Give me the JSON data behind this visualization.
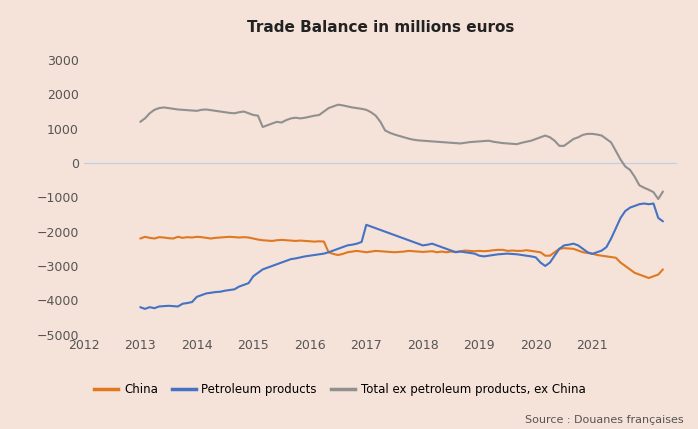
{
  "title": "Trade Balance in millions euros",
  "background_color": "#f5e2d8",
  "source_text": "Source : Douanes françaises",
  "xlim": [
    2012.0,
    2022.5
  ],
  "ylim": [
    -5000,
    3500
  ],
  "yticks": [
    -5000,
    -4000,
    -3000,
    -2000,
    -1000,
    0,
    1000,
    2000,
    3000
  ],
  "xticks": [
    2012,
    2013,
    2014,
    2015,
    2016,
    2017,
    2018,
    2019,
    2020,
    2021
  ],
  "china_color": "#E07820",
  "petroleum_color": "#4472C4",
  "total_color": "#909090",
  "china_label": "China",
  "petroleum_label": "Petroleum products",
  "total_label": "Total ex petroleum products, ex China",
  "china": {
    "x": [
      2013.0,
      2013.083,
      2013.167,
      2013.25,
      2013.333,
      2013.417,
      2013.5,
      2013.583,
      2013.667,
      2013.75,
      2013.833,
      2013.917,
      2014.0,
      2014.083,
      2014.167,
      2014.25,
      2014.333,
      2014.417,
      2014.5,
      2014.583,
      2014.667,
      2014.75,
      2014.833,
      2014.917,
      2015.0,
      2015.083,
      2015.167,
      2015.25,
      2015.333,
      2015.417,
      2015.5,
      2015.583,
      2015.667,
      2015.75,
      2015.833,
      2015.917,
      2016.0,
      2016.083,
      2016.167,
      2016.25,
      2016.333,
      2016.417,
      2016.5,
      2016.583,
      2016.667,
      2016.75,
      2016.833,
      2016.917,
      2017.0,
      2017.083,
      2017.167,
      2017.25,
      2017.333,
      2017.417,
      2017.5,
      2017.583,
      2017.667,
      2017.75,
      2017.833,
      2017.917,
      2018.0,
      2018.083,
      2018.167,
      2018.25,
      2018.333,
      2018.417,
      2018.5,
      2018.583,
      2018.667,
      2018.75,
      2018.833,
      2018.917,
      2019.0,
      2019.083,
      2019.167,
      2019.25,
      2019.333,
      2019.417,
      2019.5,
      2019.583,
      2019.667,
      2019.75,
      2019.833,
      2019.917,
      2020.0,
      2020.083,
      2020.167,
      2020.25,
      2020.333,
      2020.417,
      2020.5,
      2020.583,
      2020.667,
      2020.75,
      2020.833,
      2020.917,
      2021.0,
      2021.083,
      2021.167,
      2021.25,
      2021.333,
      2021.417,
      2021.5,
      2021.583,
      2021.667,
      2021.75,
      2021.833,
      2021.917,
      2022.0,
      2022.083,
      2022.167,
      2022.25
    ],
    "y": [
      -2200,
      -2150,
      -2180,
      -2200,
      -2160,
      -2170,
      -2190,
      -2200,
      -2150,
      -2180,
      -2160,
      -2170,
      -2150,
      -2160,
      -2180,
      -2200,
      -2180,
      -2170,
      -2160,
      -2150,
      -2160,
      -2170,
      -2160,
      -2170,
      -2200,
      -2230,
      -2250,
      -2260,
      -2270,
      -2250,
      -2240,
      -2250,
      -2260,
      -2270,
      -2260,
      -2270,
      -2280,
      -2290,
      -2280,
      -2290,
      -2600,
      -2650,
      -2680,
      -2650,
      -2600,
      -2580,
      -2560,
      -2580,
      -2600,
      -2580,
      -2560,
      -2570,
      -2580,
      -2590,
      -2600,
      -2590,
      -2580,
      -2560,
      -2570,
      -2580,
      -2590,
      -2580,
      -2570,
      -2600,
      -2580,
      -2600,
      -2580,
      -2590,
      -2570,
      -2550,
      -2560,
      -2570,
      -2560,
      -2570,
      -2560,
      -2540,
      -2530,
      -2530,
      -2560,
      -2550,
      -2560,
      -2560,
      -2540,
      -2560,
      -2580,
      -2600,
      -2700,
      -2700,
      -2600,
      -2500,
      -2480,
      -2490,
      -2500,
      -2550,
      -2600,
      -2620,
      -2640,
      -2680,
      -2700,
      -2720,
      -2740,
      -2760,
      -2900,
      -3000,
      -3100,
      -3200,
      -3250,
      -3300,
      -3350,
      -3300,
      -3250,
      -3100
    ]
  },
  "petroleum": {
    "x": [
      2013.0,
      2013.083,
      2013.167,
      2013.25,
      2013.333,
      2013.417,
      2013.5,
      2013.583,
      2013.667,
      2013.75,
      2013.833,
      2013.917,
      2014.0,
      2014.083,
      2014.167,
      2014.25,
      2014.333,
      2014.417,
      2014.5,
      2014.583,
      2014.667,
      2014.75,
      2014.833,
      2014.917,
      2015.0,
      2015.083,
      2015.167,
      2015.25,
      2015.333,
      2015.417,
      2015.5,
      2015.583,
      2015.667,
      2015.75,
      2015.833,
      2015.917,
      2016.0,
      2016.083,
      2016.167,
      2016.25,
      2016.333,
      2016.417,
      2016.5,
      2016.583,
      2016.667,
      2016.75,
      2016.833,
      2016.917,
      2017.0,
      2017.083,
      2017.167,
      2017.25,
      2017.333,
      2017.417,
      2017.5,
      2017.583,
      2017.667,
      2017.75,
      2017.833,
      2017.917,
      2018.0,
      2018.083,
      2018.167,
      2018.25,
      2018.333,
      2018.417,
      2018.5,
      2018.583,
      2018.667,
      2018.75,
      2018.833,
      2018.917,
      2019.0,
      2019.083,
      2019.167,
      2019.25,
      2019.333,
      2019.417,
      2019.5,
      2019.583,
      2019.667,
      2019.75,
      2019.833,
      2019.917,
      2020.0,
      2020.083,
      2020.167,
      2020.25,
      2020.333,
      2020.417,
      2020.5,
      2020.583,
      2020.667,
      2020.75,
      2020.833,
      2020.917,
      2021.0,
      2021.083,
      2021.167,
      2021.25,
      2021.333,
      2021.417,
      2021.5,
      2021.583,
      2021.667,
      2021.75,
      2021.833,
      2021.917,
      2022.0,
      2022.083,
      2022.167,
      2022.25
    ],
    "y": [
      -4200,
      -4250,
      -4200,
      -4230,
      -4180,
      -4170,
      -4160,
      -4170,
      -4180,
      -4100,
      -4080,
      -4050,
      -3900,
      -3850,
      -3800,
      -3780,
      -3760,
      -3750,
      -3720,
      -3700,
      -3680,
      -3600,
      -3550,
      -3500,
      -3300,
      -3200,
      -3100,
      -3050,
      -3000,
      -2950,
      -2900,
      -2850,
      -2800,
      -2780,
      -2750,
      -2720,
      -2700,
      -2680,
      -2660,
      -2640,
      -2600,
      -2550,
      -2500,
      -2450,
      -2400,
      -2380,
      -2350,
      -2300,
      -1800,
      -1850,
      -1900,
      -1950,
      -2000,
      -2050,
      -2100,
      -2150,
      -2200,
      -2250,
      -2300,
      -2350,
      -2400,
      -2380,
      -2350,
      -2400,
      -2450,
      -2500,
      -2550,
      -2600,
      -2580,
      -2600,
      -2620,
      -2640,
      -2700,
      -2720,
      -2700,
      -2680,
      -2660,
      -2650,
      -2640,
      -2650,
      -2660,
      -2680,
      -2700,
      -2720,
      -2750,
      -2900,
      -3000,
      -2900,
      -2700,
      -2500,
      -2400,
      -2380,
      -2350,
      -2400,
      -2500,
      -2600,
      -2650,
      -2600,
      -2550,
      -2450,
      -2200,
      -1900,
      -1600,
      -1400,
      -1300,
      -1250,
      -1200,
      -1180,
      -1200,
      -1180,
      -1600,
      -1700
    ]
  },
  "total": {
    "x": [
      2013.0,
      2013.083,
      2013.167,
      2013.25,
      2013.333,
      2013.417,
      2013.5,
      2013.583,
      2013.667,
      2013.75,
      2013.833,
      2013.917,
      2014.0,
      2014.083,
      2014.167,
      2014.25,
      2014.333,
      2014.417,
      2014.5,
      2014.583,
      2014.667,
      2014.75,
      2014.833,
      2014.917,
      2015.0,
      2015.083,
      2015.167,
      2015.25,
      2015.333,
      2015.417,
      2015.5,
      2015.583,
      2015.667,
      2015.75,
      2015.833,
      2015.917,
      2016.0,
      2016.083,
      2016.167,
      2016.25,
      2016.333,
      2016.417,
      2016.5,
      2016.583,
      2016.667,
      2016.75,
      2016.833,
      2016.917,
      2017.0,
      2017.083,
      2017.167,
      2017.25,
      2017.333,
      2017.417,
      2017.5,
      2017.583,
      2017.667,
      2017.75,
      2017.833,
      2017.917,
      2018.0,
      2018.083,
      2018.167,
      2018.25,
      2018.333,
      2018.417,
      2018.5,
      2018.583,
      2018.667,
      2018.75,
      2018.833,
      2018.917,
      2019.0,
      2019.083,
      2019.167,
      2019.25,
      2019.333,
      2019.417,
      2019.5,
      2019.583,
      2019.667,
      2019.75,
      2019.833,
      2019.917,
      2020.0,
      2020.083,
      2020.167,
      2020.25,
      2020.333,
      2020.417,
      2020.5,
      2020.583,
      2020.667,
      2020.75,
      2020.833,
      2020.917,
      2021.0,
      2021.083,
      2021.167,
      2021.25,
      2021.333,
      2021.417,
      2021.5,
      2021.583,
      2021.667,
      2021.75,
      2021.833,
      2021.917,
      2022.0,
      2022.083,
      2022.167,
      2022.25
    ],
    "y": [
      1200,
      1300,
      1450,
      1550,
      1600,
      1620,
      1600,
      1580,
      1560,
      1550,
      1540,
      1530,
      1520,
      1550,
      1560,
      1540,
      1520,
      1500,
      1480,
      1460,
      1450,
      1480,
      1500,
      1450,
      1400,
      1380,
      1050,
      1100,
      1150,
      1200,
      1180,
      1250,
      1300,
      1320,
      1300,
      1320,
      1350,
      1380,
      1400,
      1500,
      1600,
      1650,
      1700,
      1680,
      1650,
      1620,
      1600,
      1580,
      1550,
      1480,
      1380,
      1200,
      950,
      880,
      830,
      790,
      750,
      710,
      680,
      660,
      650,
      640,
      630,
      620,
      610,
      600,
      590,
      580,
      570,
      590,
      610,
      620,
      630,
      640,
      650,
      620,
      600,
      580,
      570,
      560,
      550,
      590,
      620,
      650,
      700,
      750,
      800,
      750,
      650,
      500,
      500,
      600,
      700,
      750,
      820,
      850,
      850,
      830,
      800,
      700,
      600,
      350,
      100,
      -100,
      -200,
      -400,
      -650,
      -720,
      -780,
      -850,
      -1050,
      -830
    ]
  }
}
